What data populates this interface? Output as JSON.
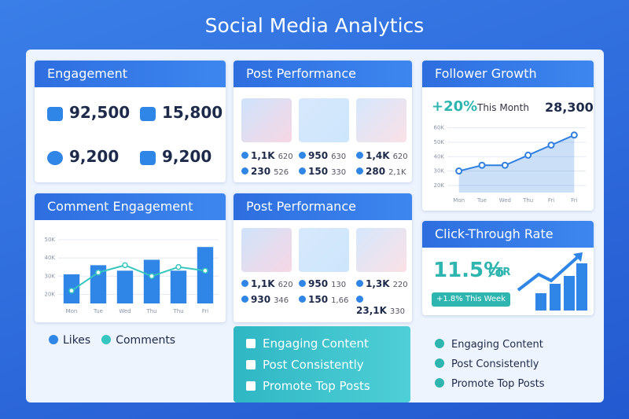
{
  "title": "Social Media Analytics",
  "engagement": {
    "title": "Engagement",
    "stats": [
      "92,500",
      "15,800",
      "9,200",
      "9,200"
    ]
  },
  "post_performance": [
    {
      "title": "Post Performance",
      "posts": [
        {
          "stats": [
            "1,1K",
            "620",
            "230",
            "526"
          ]
        },
        {
          "stats": [
            "950",
            "630",
            "150",
            "330"
          ]
        },
        {
          "stats": [
            "1,4K",
            "620",
            "280",
            "2,1K"
          ]
        }
      ]
    },
    {
      "title": "Post Performance",
      "posts": [
        {
          "stats": [
            "1,1K",
            "620",
            "930",
            "346"
          ]
        },
        {
          "stats": [
            "950",
            "130",
            "150",
            "1,66"
          ]
        },
        {
          "stats": [
            "1,3K",
            "220",
            "23,1K",
            "330"
          ]
        }
      ]
    }
  ],
  "follower_growth": {
    "title": "Follower Growth",
    "change": "+20%",
    "period": "This Month",
    "total": "28,300",
    "chart": {
      "type": "line",
      "categories": [
        "Mon",
        "Tue",
        "Wed",
        "Thu",
        "Fri",
        "Fri"
      ],
      "values": [
        30,
        34,
        34,
        41,
        48,
        55
      ],
      "color": "#2f7fe0",
      "ylim": [
        15,
        62
      ],
      "yticks": [
        {
          "value": 20,
          "label": "20K"
        },
        {
          "value": 30,
          "label": "30K"
        },
        {
          "value": 40,
          "label": "40K"
        },
        {
          "value": 50,
          "label": "50K"
        },
        {
          "value": 60,
          "label": "60K"
        }
      ]
    }
  },
  "comment_engagement": {
    "title": "Comment Engagement",
    "chart": {
      "type": "bar",
      "categories": [
        "Mon",
        "Tue",
        "Wed",
        "Thu",
        "Thu",
        "Fri"
      ],
      "series": [
        {
          "name": "Likes",
          "color": "#2f86e6",
          "values": [
            31,
            36,
            33,
            39,
            33,
            46
          ]
        },
        {
          "name": "Comments",
          "color": "#35c6c0",
          "values": [
            22,
            32,
            36,
            30,
            35,
            33
          ]
        }
      ],
      "ylim": [
        15,
        53
      ],
      "yticks": [
        {
          "value": 20,
          "label": "20K"
        },
        {
          "value": 30,
          "label": "30K"
        },
        {
          "value": 40,
          "label": "40K"
        },
        {
          "value": 50,
          "label": "50K"
        }
      ]
    }
  },
  "ctr": {
    "title": "Click-Through Rate",
    "value": "11.5%",
    "label": "CTR",
    "change": "+1.8%",
    "period": "This Week"
  },
  "tips": [
    [
      "Engaging Content",
      "Post Consistently",
      "Promote Top Posts"
    ],
    [
      "Engaging Content",
      "Post Consistently",
      "Promote Top Posts"
    ]
  ]
}
